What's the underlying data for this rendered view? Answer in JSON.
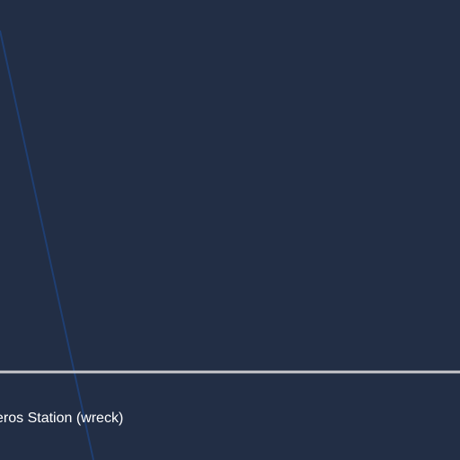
{
  "map": {
    "colors": {
      "background": "#222e45",
      "route_line": "#1f3f73",
      "horizontal_line": "#c8c8cc",
      "label_text": "#ffffff"
    },
    "labels": {
      "station_label": "eros Station (wreck)"
    }
  }
}
